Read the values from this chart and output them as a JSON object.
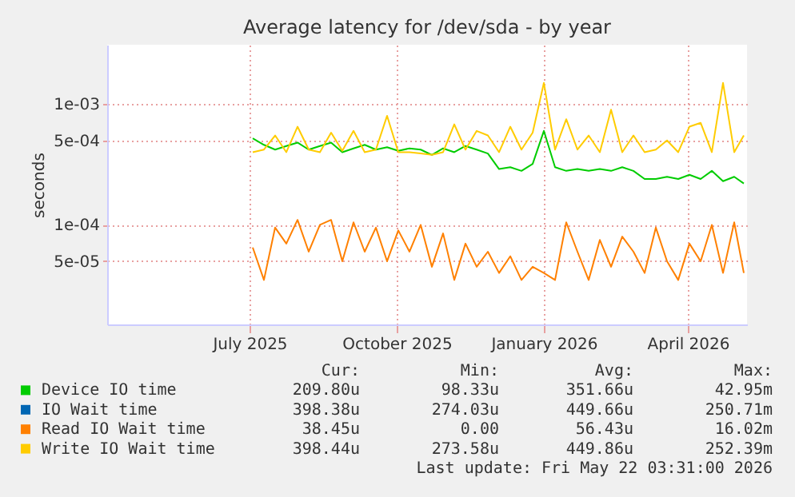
{
  "chart_data": {
    "type": "line",
    "title": "Average latency for /dev/sda - by year",
    "ylabel": "seconds",
    "log": "y",
    "grid": true,
    "legend": "bottom",
    "marker": "none",
    "line_style": "solid",
    "ylim": [
      1.5e-05,
      0.0031
    ],
    "yticks": [
      {
        "value": 5e-05,
        "label": "5e-05"
      },
      {
        "value": 0.0001,
        "label": "1e-04"
      },
      {
        "value": 0.0005,
        "label": "5e-04"
      },
      {
        "value": 0.001,
        "label": "1e-03"
      }
    ],
    "xlim": [
      "2025-04-03",
      "2026-05-08"
    ],
    "xticks": [
      {
        "value": "2025-07-01",
        "label": "July 2025"
      },
      {
        "value": "2025-10-01",
        "label": "October 2025"
      },
      {
        "value": "2026-01-01",
        "label": "January 2026"
      },
      {
        "value": "2026-04-01",
        "label": "April 2026"
      }
    ],
    "x": [
      "2025-07-03",
      "2025-07-10",
      "2025-07-17",
      "2025-07-24",
      "2025-07-31",
      "2025-08-07",
      "2025-08-14",
      "2025-08-21",
      "2025-08-28",
      "2025-09-04",
      "2025-09-11",
      "2025-09-18",
      "2025-09-25",
      "2025-10-02",
      "2025-10-09",
      "2025-10-16",
      "2025-10-23",
      "2025-10-30",
      "2025-11-06",
      "2025-11-13",
      "2025-11-20",
      "2025-11-27",
      "2025-12-04",
      "2025-12-11",
      "2025-12-18",
      "2025-12-25",
      "2026-01-01",
      "2026-01-08",
      "2026-01-15",
      "2026-01-22",
      "2026-01-29",
      "2026-02-05",
      "2026-02-12",
      "2026-02-19",
      "2026-02-26",
      "2026-03-05",
      "2026-03-12",
      "2026-03-19",
      "2026-03-26",
      "2026-04-02",
      "2026-04-09",
      "2026-04-16",
      "2026-04-23",
      "2026-04-30",
      "2026-05-06"
    ],
    "series": [
      {
        "name": "Device IO time",
        "color": "#00cc00",
        "values": [
          0.00052,
          0.00046,
          0.00042,
          0.00045,
          0.00048,
          0.00042,
          0.00045,
          0.00048,
          0.0004,
          0.00043,
          0.00046,
          0.00042,
          0.00044,
          0.00041,
          0.00043,
          0.00042,
          0.00038,
          0.00043,
          0.0004,
          0.00045,
          0.00042,
          0.00039,
          0.00029,
          0.0003,
          0.00028,
          0.00032,
          0.0006,
          0.0003,
          0.00028,
          0.00029,
          0.00028,
          0.00029,
          0.00028,
          0.0003,
          0.00028,
          0.00024,
          0.00024,
          0.00025,
          0.00024,
          0.00026,
          0.00024,
          0.00028,
          0.00023,
          0.00025,
          0.00022
        ]
      },
      {
        "name": "IO Wait time",
        "color": "#0066b3",
        "values": [
          null,
          null,
          null,
          null,
          null,
          null,
          null,
          null,
          null,
          null,
          null,
          null,
          null,
          null,
          null,
          null,
          null,
          null,
          null,
          null,
          null,
          null,
          null,
          null,
          null,
          null,
          null,
          null,
          null,
          null,
          null,
          null,
          null,
          null,
          null,
          null,
          null,
          null,
          null,
          null,
          null,
          null,
          null,
          null,
          null
        ]
      },
      {
        "name": "Read IO Wait time",
        "color": "#ff8000",
        "values": [
          6.5e-05,
          3.5e-05,
          9.5e-05,
          7e-05,
          0.00011,
          6e-05,
          0.0001,
          0.00011,
          5e-05,
          0.000105,
          6e-05,
          9.5e-05,
          5e-05,
          9e-05,
          6e-05,
          0.0001,
          4.5e-05,
          8.5e-05,
          3.5e-05,
          7e-05,
          4.5e-05,
          6e-05,
          4e-05,
          5.5e-05,
          3.5e-05,
          4.5e-05,
          4e-05,
          3.5e-05,
          0.000105,
          6e-05,
          3.5e-05,
          7.5e-05,
          4.5e-05,
          8e-05,
          6e-05,
          4e-05,
          9.5e-05,
          5e-05,
          3.5e-05,
          7e-05,
          5e-05,
          0.0001,
          4e-05,
          0.000105,
          4e-05
        ]
      },
      {
        "name": "Write IO Wait time",
        "color": "#ffcc00",
        "values": [
          0.0004,
          0.00042,
          0.00055,
          0.0004,
          0.00065,
          0.00042,
          0.0004,
          0.00058,
          0.00041,
          0.0006,
          0.0004,
          0.00042,
          0.0008,
          0.0004,
          0.0004,
          0.00039,
          0.00038,
          0.0004,
          0.00068,
          0.00042,
          0.0006,
          0.00055,
          0.0004,
          0.00065,
          0.00042,
          0.00058,
          0.0015,
          0.00042,
          0.00075,
          0.00042,
          0.00055,
          0.0004,
          0.0009,
          0.0004,
          0.00055,
          0.0004,
          0.00042,
          0.0005,
          0.0004,
          0.00065,
          0.0007,
          0.0004,
          0.0015,
          0.0004,
          0.00055
        ]
      }
    ],
    "annotations": [
      "Cur:",
      "Min:",
      "Avg:",
      "Max:",
      "209.80u",
      "98.33u",
      "351.66u",
      "42.95m",
      "398.38u",
      "274.03u",
      "449.66u",
      "250.71m",
      "38.45u",
      "0.00",
      "56.43u",
      "16.02m",
      "398.44u",
      "273.58u",
      "449.86u",
      "252.39m",
      "Last update: Fri May 22 03:31:00 2026"
    ]
  }
}
